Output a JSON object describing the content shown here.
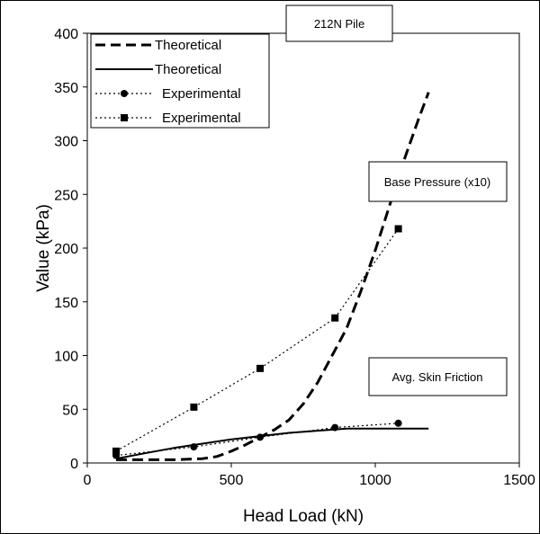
{
  "chart_data": {
    "type": "line",
    "title": "212N Pile",
    "xlabel": "Head Load (kN)",
    "ylabel": "Value (kPa)",
    "xlim": [
      0,
      1500
    ],
    "ylim": [
      0,
      400
    ],
    "x_ticks": [
      "0",
      "500",
      "1000",
      "1500"
    ],
    "y_ticks": [
      "0",
      "50",
      "100",
      "150",
      "200",
      "250",
      "300",
      "350",
      "400"
    ],
    "grid": false,
    "legend_position": "top-left",
    "annotations": {
      "base_pressure": "Base Pressure (x10)",
      "skin_friction": "Avg. Skin Friction"
    },
    "series": [
      {
        "name": "Theoretical",
        "style": "dashed",
        "marker": "none",
        "color": "#000000",
        "x": [
          100,
          200,
          300,
          400,
          450,
          500,
          550,
          600,
          650,
          700,
          750,
          800,
          850,
          900,
          950,
          1000,
          1050,
          1100,
          1150,
          1185
        ],
        "y": [
          3,
          3,
          3,
          4,
          6,
          11,
          17,
          24,
          31,
          40,
          55,
          75,
          100,
          125,
          160,
          198,
          240,
          282,
          320,
          345
        ]
      },
      {
        "name": "Theoretical",
        "style": "solid",
        "marker": "none",
        "color": "#000000",
        "x": [
          100,
          200,
          300,
          400,
          500,
          600,
          700,
          800,
          900,
          1000,
          1100,
          1185
        ],
        "y": [
          4,
          9,
          14,
          18,
          22,
          25,
          28,
          30,
          32,
          32,
          32,
          32
        ]
      },
      {
        "name": "Experimental",
        "style": "dotted",
        "marker": "circle",
        "color": "#000000",
        "x": [
          100,
          370,
          600,
          860,
          1080
        ],
        "y": [
          7,
          15,
          24,
          33,
          37
        ]
      },
      {
        "name": "Experimental",
        "style": "dotted",
        "marker": "square",
        "color": "#000000",
        "x": [
          100,
          370,
          600,
          860,
          1080
        ],
        "y": [
          11,
          52,
          88,
          135,
          218
        ]
      }
    ]
  }
}
